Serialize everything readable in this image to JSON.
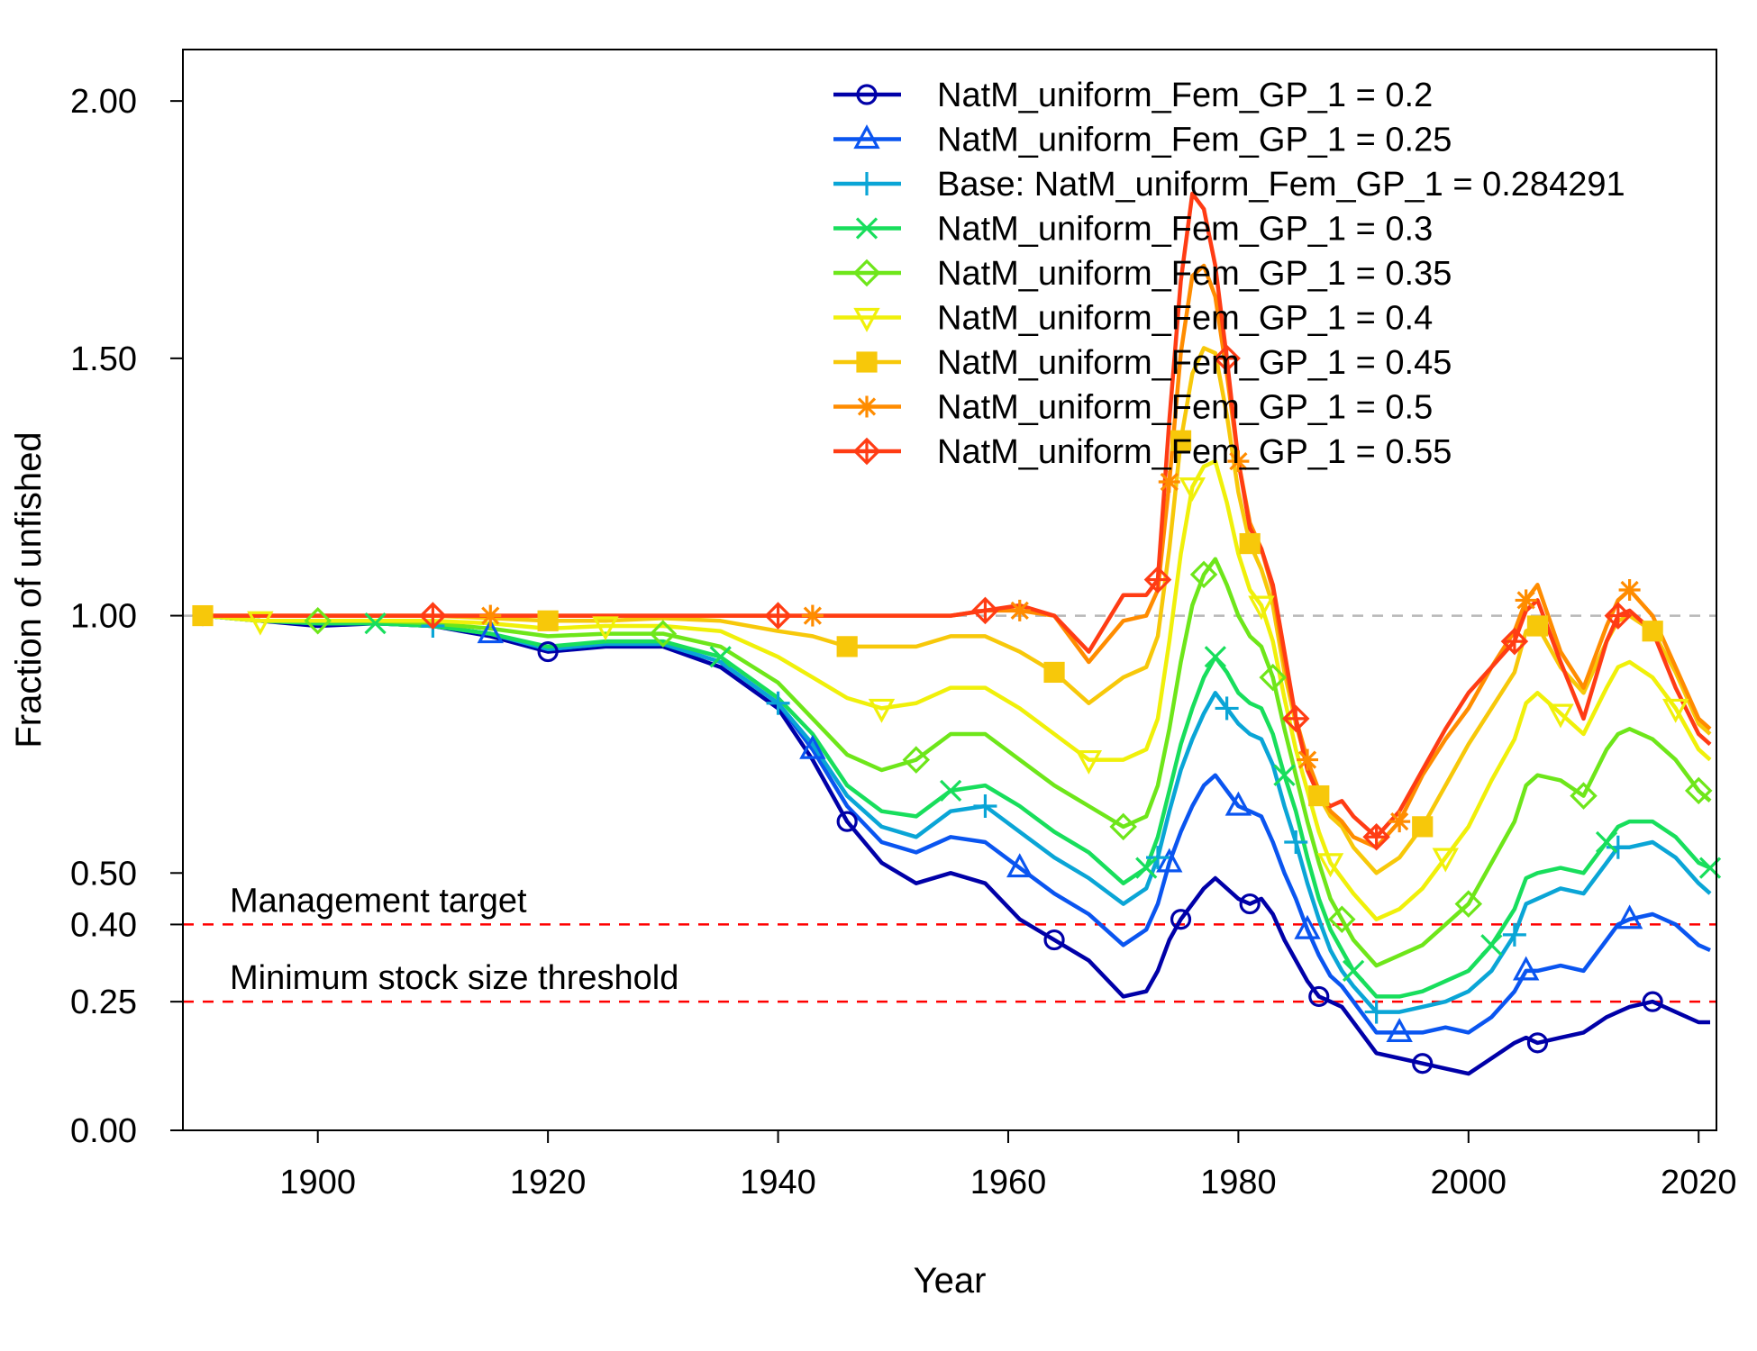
{
  "chart_data": {
    "type": "line",
    "title": "",
    "xlabel": "Year",
    "ylabel": "Fraction of unfished",
    "xlim": [
      1890,
      2021
    ],
    "ylim": [
      0,
      2.1
    ],
    "xticks": [
      1900,
      1920,
      1940,
      1960,
      1980,
      2000,
      2020
    ],
    "yticks": [
      0.0,
      0.25,
      0.4,
      0.5,
      1.0,
      1.5,
      2.0
    ],
    "ytick_labels": [
      "0.00",
      "0.25",
      "0.40",
      "0.50",
      "1.00",
      "1.50",
      "2.00"
    ],
    "grid": false,
    "legend_position": "top-right",
    "reference_lines": [
      {
        "y": 1.0,
        "color": "#b8b8b8",
        "label": ""
      },
      {
        "y": 0.4,
        "color": "#ff0000",
        "label": "Management target"
      },
      {
        "y": 0.25,
        "color": "#ff0000",
        "label": "Minimum stock size threshold"
      }
    ],
    "x": [
      1890,
      1895,
      1900,
      1905,
      1910,
      1915,
      1920,
      1925,
      1930,
      1935,
      1940,
      1943,
      1946,
      1949,
      1952,
      1955,
      1958,
      1961,
      1964,
      1967,
      1970,
      1972,
      1973,
      1974,
      1975,
      1976,
      1977,
      1978,
      1979,
      1980,
      1981,
      1982,
      1983,
      1984,
      1985,
      1986,
      1987,
      1988,
      1989,
      1990,
      1992,
      1994,
      1996,
      1998,
      2000,
      2002,
      2004,
      2005,
      2006,
      2008,
      2010,
      2012,
      2013,
      2014,
      2016,
      2018,
      2020,
      2021
    ],
    "series": [
      {
        "name": "NatM_uniform_Fem_GP_1 = 0.2",
        "color": "#0000a8",
        "marker": "circle",
        "values": [
          1.0,
          0.99,
          0.98,
          0.985,
          0.98,
          0.96,
          0.93,
          0.94,
          0.94,
          0.9,
          0.82,
          0.72,
          0.6,
          0.52,
          0.48,
          0.5,
          0.48,
          0.41,
          0.37,
          0.33,
          0.26,
          0.27,
          0.31,
          0.37,
          0.41,
          0.44,
          0.47,
          0.49,
          0.47,
          0.45,
          0.44,
          0.45,
          0.42,
          0.37,
          0.33,
          0.29,
          0.26,
          0.25,
          0.24,
          0.21,
          0.15,
          0.14,
          0.13,
          0.12,
          0.11,
          0.14,
          0.17,
          0.18,
          0.17,
          0.18,
          0.19,
          0.22,
          0.23,
          0.24,
          0.25,
          0.23,
          0.21,
          0.21
        ]
      },
      {
        "name": "NatM_uniform_Fem_GP_1 = 0.25",
        "color": "#0a55f0",
        "marker": "triangle",
        "values": [
          1.0,
          0.99,
          0.985,
          0.985,
          0.98,
          0.965,
          0.935,
          0.945,
          0.945,
          0.91,
          0.83,
          0.74,
          0.63,
          0.56,
          0.54,
          0.57,
          0.56,
          0.51,
          0.46,
          0.42,
          0.36,
          0.39,
          0.44,
          0.52,
          0.58,
          0.63,
          0.67,
          0.69,
          0.66,
          0.63,
          0.62,
          0.61,
          0.56,
          0.5,
          0.45,
          0.39,
          0.34,
          0.3,
          0.28,
          0.25,
          0.19,
          0.19,
          0.19,
          0.2,
          0.19,
          0.22,
          0.27,
          0.31,
          0.31,
          0.32,
          0.31,
          0.37,
          0.4,
          0.41,
          0.42,
          0.4,
          0.36,
          0.35
        ]
      },
      {
        "name": "Base: NatM_uniform_Fem_GP_1 = 0.284291",
        "color": "#0aa5d6",
        "marker": "plus",
        "values": [
          1.0,
          0.99,
          0.985,
          0.985,
          0.98,
          0.965,
          0.935,
          0.945,
          0.945,
          0.91,
          0.83,
          0.75,
          0.65,
          0.59,
          0.57,
          0.62,
          0.63,
          0.58,
          0.53,
          0.49,
          0.44,
          0.47,
          0.53,
          0.62,
          0.7,
          0.76,
          0.81,
          0.85,
          0.82,
          0.79,
          0.77,
          0.76,
          0.71,
          0.63,
          0.56,
          0.48,
          0.41,
          0.35,
          0.31,
          0.28,
          0.23,
          0.23,
          0.24,
          0.25,
          0.27,
          0.31,
          0.38,
          0.44,
          0.45,
          0.47,
          0.46,
          0.52,
          0.55,
          0.55,
          0.56,
          0.53,
          0.48,
          0.46
        ]
      },
      {
        "name": "NatM_uniform_Fem_GP_1 = 0.3",
        "color": "#18de5c",
        "marker": "x",
        "values": [
          1.0,
          0.99,
          0.985,
          0.985,
          0.98,
          0.965,
          0.94,
          0.95,
          0.95,
          0.92,
          0.84,
          0.77,
          0.67,
          0.62,
          0.61,
          0.66,
          0.67,
          0.63,
          0.58,
          0.54,
          0.48,
          0.51,
          0.57,
          0.66,
          0.75,
          0.82,
          0.88,
          0.92,
          0.89,
          0.85,
          0.83,
          0.82,
          0.77,
          0.69,
          0.62,
          0.53,
          0.45,
          0.39,
          0.35,
          0.31,
          0.26,
          0.26,
          0.27,
          0.29,
          0.31,
          0.36,
          0.43,
          0.49,
          0.5,
          0.51,
          0.5,
          0.56,
          0.59,
          0.6,
          0.6,
          0.57,
          0.52,
          0.51
        ]
      },
      {
        "name": "NatM_uniform_Fem_GP_1 = 0.35",
        "color": "#6ee61a",
        "marker": "diamond",
        "values": [
          1.0,
          0.99,
          0.99,
          0.99,
          0.985,
          0.975,
          0.96,
          0.965,
          0.965,
          0.94,
          0.87,
          0.8,
          0.73,
          0.7,
          0.72,
          0.77,
          0.77,
          0.72,
          0.67,
          0.63,
          0.59,
          0.61,
          0.67,
          0.78,
          0.91,
          1.02,
          1.08,
          1.11,
          1.06,
          1.0,
          0.96,
          0.94,
          0.88,
          0.78,
          0.69,
          0.6,
          0.52,
          0.45,
          0.41,
          0.37,
          0.32,
          0.34,
          0.36,
          0.4,
          0.44,
          0.52,
          0.6,
          0.67,
          0.69,
          0.68,
          0.65,
          0.74,
          0.77,
          0.78,
          0.76,
          0.72,
          0.66,
          0.64
        ]
      },
      {
        "name": "NatM_uniform_Fem_GP_1 = 0.4",
        "color": "#f0f00a",
        "marker": "triangle-down",
        "values": [
          1.0,
          0.99,
          0.99,
          0.99,
          0.99,
          0.985,
          0.975,
          0.98,
          0.98,
          0.97,
          0.92,
          0.88,
          0.84,
          0.82,
          0.83,
          0.86,
          0.86,
          0.82,
          0.77,
          0.72,
          0.72,
          0.74,
          0.8,
          0.95,
          1.12,
          1.25,
          1.29,
          1.3,
          1.22,
          1.12,
          1.05,
          1.02,
          0.95,
          0.84,
          0.74,
          0.66,
          0.58,
          0.52,
          0.49,
          0.46,
          0.41,
          0.43,
          0.47,
          0.53,
          0.59,
          0.68,
          0.76,
          0.83,
          0.85,
          0.81,
          0.77,
          0.86,
          0.9,
          0.91,
          0.88,
          0.82,
          0.74,
          0.72
        ]
      },
      {
        "name": "NatM_uniform_Fem_GP_1 = 0.45",
        "color": "#f7c80a",
        "marker": "square",
        "values": [
          1.0,
          1.0,
          1.0,
          1.0,
          1.0,
          0.995,
          0.99,
          0.99,
          0.995,
          0.99,
          0.97,
          0.96,
          0.94,
          0.94,
          0.94,
          0.96,
          0.96,
          0.93,
          0.89,
          0.83,
          0.88,
          0.9,
          0.96,
          1.13,
          1.34,
          1.47,
          1.52,
          1.51,
          1.39,
          1.24,
          1.14,
          1.09,
          1.02,
          0.89,
          0.79,
          0.71,
          0.65,
          0.61,
          0.59,
          0.55,
          0.5,
          0.53,
          0.59,
          0.67,
          0.75,
          0.82,
          0.89,
          0.97,
          0.98,
          0.9,
          0.85,
          0.95,
          0.99,
          1.0,
          0.97,
          0.89,
          0.79,
          0.77
        ]
      },
      {
        "name": "NatM_uniform_Fem_GP_1 = 0.5",
        "color": "#ff8c00",
        "marker": "asterisk",
        "values": [
          1.0,
          1.0,
          1.0,
          1.0,
          1.0,
          1.0,
          1.0,
          1.0,
          1.0,
          1.0,
          1.0,
          1.0,
          1.0,
          1.0,
          1.0,
          1.0,
          1.01,
          1.01,
          1.0,
          0.91,
          0.99,
          1.0,
          1.05,
          1.26,
          1.51,
          1.66,
          1.68,
          1.62,
          1.47,
          1.3,
          1.18,
          1.13,
          1.05,
          0.91,
          0.8,
          0.72,
          0.66,
          0.62,
          0.6,
          0.57,
          0.55,
          0.6,
          0.69,
          0.76,
          0.82,
          0.9,
          0.97,
          1.03,
          1.06,
          0.93,
          0.86,
          0.98,
          1.03,
          1.05,
          1.0,
          0.9,
          0.8,
          0.78
        ]
      },
      {
        "name": "NatM_uniform_Fem_GP_1 = 0.55",
        "color": "#ff3c14",
        "marker": "diamond-plus",
        "values": [
          1.0,
          1.0,
          1.0,
          1.0,
          1.0,
          1.0,
          1.0,
          1.0,
          1.0,
          1.0,
          1.0,
          1.0,
          1.0,
          1.0,
          1.0,
          1.0,
          1.01,
          1.02,
          1.0,
          0.93,
          1.04,
          1.04,
          1.07,
          1.38,
          1.65,
          1.82,
          1.79,
          1.68,
          1.5,
          1.3,
          1.17,
          1.13,
          1.06,
          0.93,
          0.8,
          0.7,
          0.65,
          0.63,
          0.64,
          0.61,
          0.57,
          0.62,
          0.7,
          0.78,
          0.85,
          0.9,
          0.95,
          1.01,
          1.03,
          0.91,
          0.8,
          0.95,
          1.0,
          1.01,
          0.97,
          0.86,
          0.77,
          0.75
        ]
      }
    ]
  }
}
